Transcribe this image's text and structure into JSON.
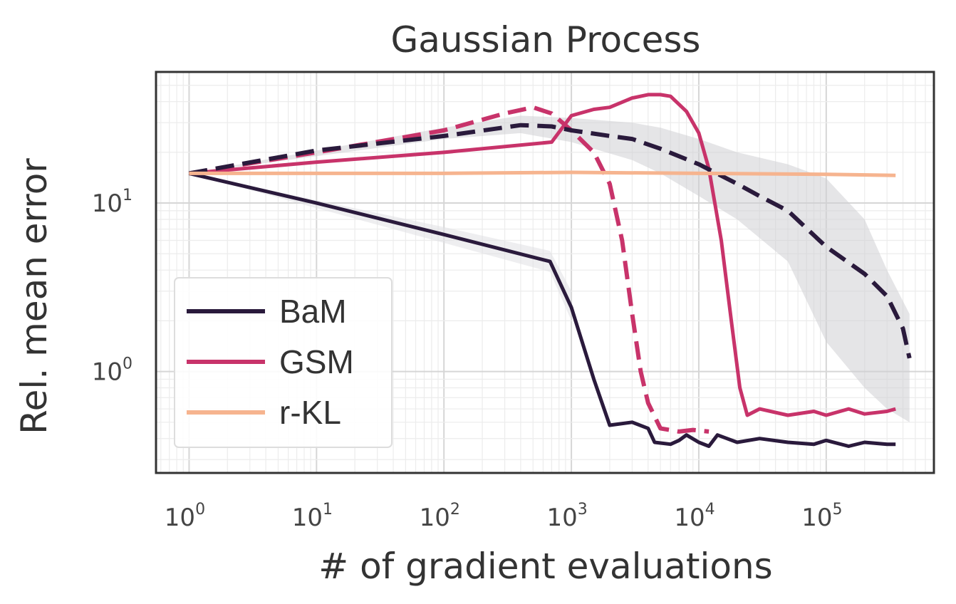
{
  "chart_data": {
    "type": "line",
    "title": "Gaussian Process",
    "xlabel": "# of gradient evaluations",
    "ylabel": "Rel. mean error",
    "xscale": "log",
    "yscale": "log",
    "xlim": [
      0.55,
      700000
    ],
    "ylim": [
      0.25,
      60
    ],
    "x_ticks": [
      {
        "value": 1,
        "base": "10",
        "exp": "0"
      },
      {
        "value": 10,
        "base": "10",
        "exp": "1"
      },
      {
        "value": 100,
        "base": "10",
        "exp": "2"
      },
      {
        "value": 1000,
        "base": "10",
        "exp": "3"
      },
      {
        "value": 10000,
        "base": "10",
        "exp": "4"
      },
      {
        "value": 100000,
        "base": "10",
        "exp": "5"
      }
    ],
    "y_ticks": [
      {
        "value": 1,
        "base": "10",
        "exp": "0"
      },
      {
        "value": 10,
        "base": "10",
        "exp": "1"
      }
    ],
    "grid": true,
    "legend": {
      "placement": "lower-left",
      "entries": [
        {
          "label": "BaM",
          "color": "#2a1a3c"
        },
        {
          "label": "GSM",
          "color": "#c8336a"
        },
        {
          "label": "r-KL",
          "color": "#f6b48f"
        }
      ]
    },
    "series": [
      {
        "name": "BaM",
        "color": "#2a1a3c",
        "dash": "solid",
        "points": [
          [
            1,
            15
          ],
          [
            10,
            10
          ],
          [
            100,
            6.5
          ],
          [
            680,
            4.5
          ],
          [
            1000,
            2.4
          ],
          [
            1500,
            0.9
          ],
          [
            2000,
            0.48
          ],
          [
            3000,
            0.5
          ],
          [
            4000,
            0.46
          ],
          [
            4500,
            0.38
          ],
          [
            6000,
            0.37
          ],
          [
            7000,
            0.39
          ],
          [
            8000,
            0.42
          ],
          [
            10000,
            0.38
          ],
          [
            12000,
            0.36
          ],
          [
            14000,
            0.42
          ],
          [
            20000,
            0.38
          ],
          [
            30000,
            0.4
          ],
          [
            50000,
            0.38
          ],
          [
            80000,
            0.37
          ],
          [
            100000,
            0.39
          ],
          [
            150000,
            0.36
          ],
          [
            200000,
            0.38
          ],
          [
            300000,
            0.37
          ],
          [
            350000,
            0.37
          ]
        ]
      },
      {
        "name": "GSM",
        "color": "#c8336a",
        "dash": "solid",
        "points": [
          [
            1,
            15
          ],
          [
            10,
            17.5
          ],
          [
            100,
            20
          ],
          [
            700,
            23
          ],
          [
            1000,
            33
          ],
          [
            1500,
            36
          ],
          [
            2000,
            37
          ],
          [
            3000,
            42
          ],
          [
            4000,
            44
          ],
          [
            5000,
            44
          ],
          [
            6000,
            43
          ],
          [
            8000,
            35
          ],
          [
            10000,
            26
          ],
          [
            12000,
            16
          ],
          [
            15000,
            6
          ],
          [
            18000,
            2
          ],
          [
            21000,
            0.8
          ],
          [
            24000,
            0.55
          ],
          [
            30000,
            0.6
          ],
          [
            50000,
            0.55
          ],
          [
            80000,
            0.58
          ],
          [
            100000,
            0.55
          ],
          [
            150000,
            0.6
          ],
          [
            200000,
            0.56
          ],
          [
            300000,
            0.58
          ],
          [
            350000,
            0.6
          ]
        ]
      },
      {
        "name": "",
        "color": "#c8336a",
        "dash": "dashed",
        "points": [
          [
            1,
            15
          ],
          [
            10,
            20
          ],
          [
            100,
            27
          ],
          [
            300,
            34
          ],
          [
            500,
            37
          ],
          [
            700,
            34
          ],
          [
            1000,
            27
          ],
          [
            1500,
            20
          ],
          [
            2000,
            13
          ],
          [
            2500,
            6
          ],
          [
            3000,
            2.2
          ],
          [
            3500,
            1
          ],
          [
            4000,
            0.65
          ],
          [
            5000,
            0.46
          ],
          [
            7000,
            0.44
          ],
          [
            9000,
            0.45
          ],
          [
            12000,
            0.44
          ]
        ]
      },
      {
        "name": "",
        "color": "#2a1a3c",
        "dash": "dashed",
        "points": [
          [
            1,
            15
          ],
          [
            10,
            20.5
          ],
          [
            100,
            25
          ],
          [
            400,
            29
          ],
          [
            700,
            28.5
          ],
          [
            1000,
            27
          ],
          [
            2000,
            25
          ],
          [
            3000,
            24
          ],
          [
            5000,
            21
          ],
          [
            10000,
            17
          ],
          [
            20000,
            13
          ],
          [
            30000,
            11
          ],
          [
            50000,
            9
          ],
          [
            100000,
            5.5
          ],
          [
            200000,
            3.8
          ],
          [
            300000,
            2.8
          ],
          [
            400000,
            1.8
          ],
          [
            450000,
            1.2
          ]
        ]
      },
      {
        "name": "",
        "color": "#f6b48f",
        "dash": "solid",
        "points": [
          [
            1,
            15
          ],
          [
            100,
            15
          ],
          [
            1000,
            15.2
          ],
          [
            10000,
            15
          ],
          [
            100000,
            14.8
          ],
          [
            350000,
            14.6
          ]
        ]
      }
    ],
    "bands": [
      {
        "color": "#d0d0d4",
        "upper": [
          [
            1,
            15
          ],
          [
            100,
            28
          ],
          [
            400,
            33
          ],
          [
            1000,
            32
          ],
          [
            3000,
            30
          ],
          [
            5000,
            28
          ],
          [
            10000,
            24
          ],
          [
            20000,
            20
          ],
          [
            50000,
            17
          ],
          [
            100000,
            14
          ],
          [
            200000,
            8
          ],
          [
            300000,
            4
          ],
          [
            450000,
            2.2
          ]
        ],
        "lower": [
          [
            1,
            15
          ],
          [
            100,
            24
          ],
          [
            400,
            26
          ],
          [
            1000,
            23
          ],
          [
            3000,
            18
          ],
          [
            5000,
            15
          ],
          [
            10000,
            11
          ],
          [
            20000,
            8
          ],
          [
            50000,
            4.5
          ],
          [
            100000,
            1.5
          ],
          [
            200000,
            0.8
          ],
          [
            300000,
            0.6
          ],
          [
            450000,
            0.5
          ]
        ]
      },
      {
        "color": "#e0e0e4",
        "upper": [
          [
            1,
            15
          ],
          [
            100,
            7.2
          ],
          [
            680,
            5.2
          ],
          [
            1000,
            3
          ]
        ],
        "lower": [
          [
            1,
            15
          ],
          [
            100,
            5.8
          ],
          [
            680,
            3.9
          ],
          [
            1000,
            2
          ]
        ]
      }
    ]
  }
}
